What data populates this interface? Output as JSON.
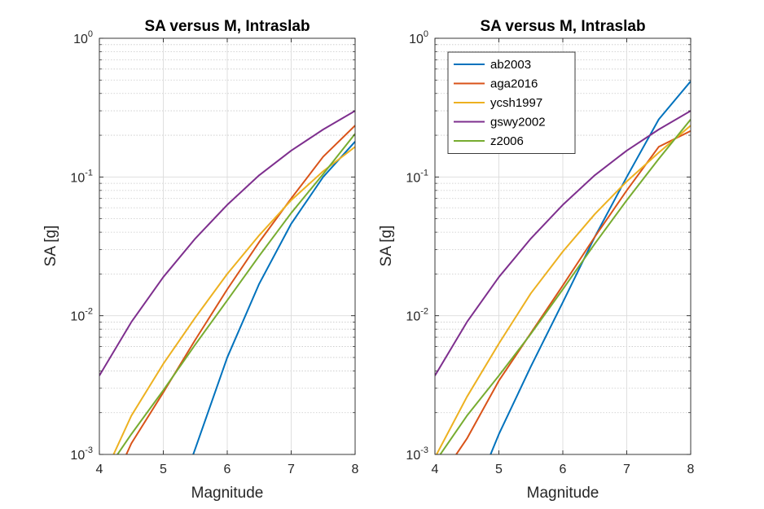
{
  "chart_data": [
    {
      "type": "line",
      "title": "SA versus M, Intraslab",
      "xlabel": "Magnitude",
      "ylabel": "SA [g]",
      "xlim": [
        4,
        8
      ],
      "ylim": [
        0.001,
        1
      ],
      "yscale": "log",
      "grid": true,
      "minor_grid": true,
      "legend": null,
      "xticks": [
        "4",
        "5",
        "6",
        "7",
        "8"
      ],
      "yticks": [
        {
          "base": "10",
          "exp": "-3",
          "value": 0.001
        },
        {
          "base": "10",
          "exp": "-2",
          "value": 0.01
        },
        {
          "base": "10",
          "exp": "-1",
          "value": 0.1
        },
        {
          "base": "10",
          "exp": "0",
          "value": 1
        }
      ],
      "series": [
        {
          "color": "#0072BD",
          "x": [
            5.45,
            5.5,
            6.0,
            6.5,
            7.0,
            7.5,
            8.0
          ],
          "y": [
            0.00095,
            0.0011,
            0.005,
            0.017,
            0.046,
            0.1,
            0.18
          ]
        },
        {
          "color": "#D95319",
          "x": [
            4.4,
            4.5,
            5.0,
            5.5,
            6.0,
            6.5,
            7.0,
            7.5,
            8.0
          ],
          "y": [
            0.00095,
            0.0012,
            0.0028,
            0.0067,
            0.0155,
            0.034,
            0.07,
            0.14,
            0.235
          ]
        },
        {
          "color": "#EDB120",
          "x": [
            4.2,
            4.5,
            5.0,
            5.5,
            6.0,
            6.5,
            7.0,
            7.5,
            8.0
          ],
          "y": [
            0.00095,
            0.0019,
            0.0045,
            0.0097,
            0.02,
            0.038,
            0.068,
            0.11,
            0.165
          ]
        },
        {
          "color": "#7E2F8E",
          "x": [
            4.0,
            4.5,
            5.0,
            5.5,
            6.0,
            6.5,
            7.0,
            7.5,
            8.0
          ],
          "y": [
            0.0037,
            0.009,
            0.019,
            0.036,
            0.063,
            0.103,
            0.155,
            0.22,
            0.3
          ]
        },
        {
          "color": "#77AC30",
          "x": [
            4.25,
            4.5,
            5.0,
            5.5,
            6.0,
            6.5,
            7.0,
            7.5,
            8.0
          ],
          "y": [
            0.00095,
            0.0014,
            0.0029,
            0.0062,
            0.0129,
            0.027,
            0.055,
            0.105,
            0.205
          ]
        }
      ]
    },
    {
      "type": "line",
      "title": "SA versus M, Intraslab",
      "xlabel": "Magnitude",
      "ylabel": "SA [g]",
      "xlim": [
        4,
        8
      ],
      "ylim": [
        0.001,
        1
      ],
      "yscale": "log",
      "grid": true,
      "minor_grid": true,
      "legend": "top-left",
      "xticks": [
        "4",
        "5",
        "6",
        "7",
        "8"
      ],
      "yticks": [
        {
          "base": "10",
          "exp": "-3",
          "value": 0.001
        },
        {
          "base": "10",
          "exp": "-2",
          "value": 0.01
        },
        {
          "base": "10",
          "exp": "-1",
          "value": 0.1
        },
        {
          "base": "10",
          "exp": "0",
          "value": 1
        }
      ],
      "series": [
        {
          "name": "ab2003",
          "color": "#0072BD",
          "x": [
            4.85,
            5.0,
            5.5,
            6.0,
            6.5,
            7.0,
            7.5,
            8.0
          ],
          "y": [
            0.00095,
            0.0014,
            0.0043,
            0.0125,
            0.037,
            0.1,
            0.26,
            0.49
          ]
        },
        {
          "name": "aga2016",
          "color": "#D95319",
          "x": [
            4.3,
            4.5,
            5.0,
            5.5,
            6.0,
            6.5,
            7.0,
            7.5,
            8.0
          ],
          "y": [
            0.00095,
            0.0013,
            0.0034,
            0.0075,
            0.0165,
            0.037,
            0.08,
            0.165,
            0.215
          ]
        },
        {
          "name": "ycsh1997",
          "color": "#EDB120",
          "x": [
            4.0,
            4.5,
            5.0,
            5.5,
            6.0,
            6.5,
            7.0,
            7.5,
            8.0
          ],
          "y": [
            0.00095,
            0.0026,
            0.0063,
            0.0145,
            0.029,
            0.054,
            0.093,
            0.15,
            0.235
          ]
        },
        {
          "name": "gswy2002",
          "color": "#7E2F8E",
          "x": [
            4.0,
            4.5,
            5.0,
            5.5,
            6.0,
            6.5,
            7.0,
            7.5,
            8.0
          ],
          "y": [
            0.0037,
            0.009,
            0.019,
            0.036,
            0.063,
            0.103,
            0.155,
            0.22,
            0.3
          ]
        },
        {
          "name": "z2006",
          "color": "#77AC30",
          "x": [
            4.05,
            4.5,
            5.0,
            5.5,
            6.0,
            6.5,
            7.0,
            7.5,
            8.0
          ],
          "y": [
            0.00095,
            0.0019,
            0.0037,
            0.0074,
            0.0155,
            0.033,
            0.068,
            0.135,
            0.26
          ]
        }
      ]
    }
  ]
}
